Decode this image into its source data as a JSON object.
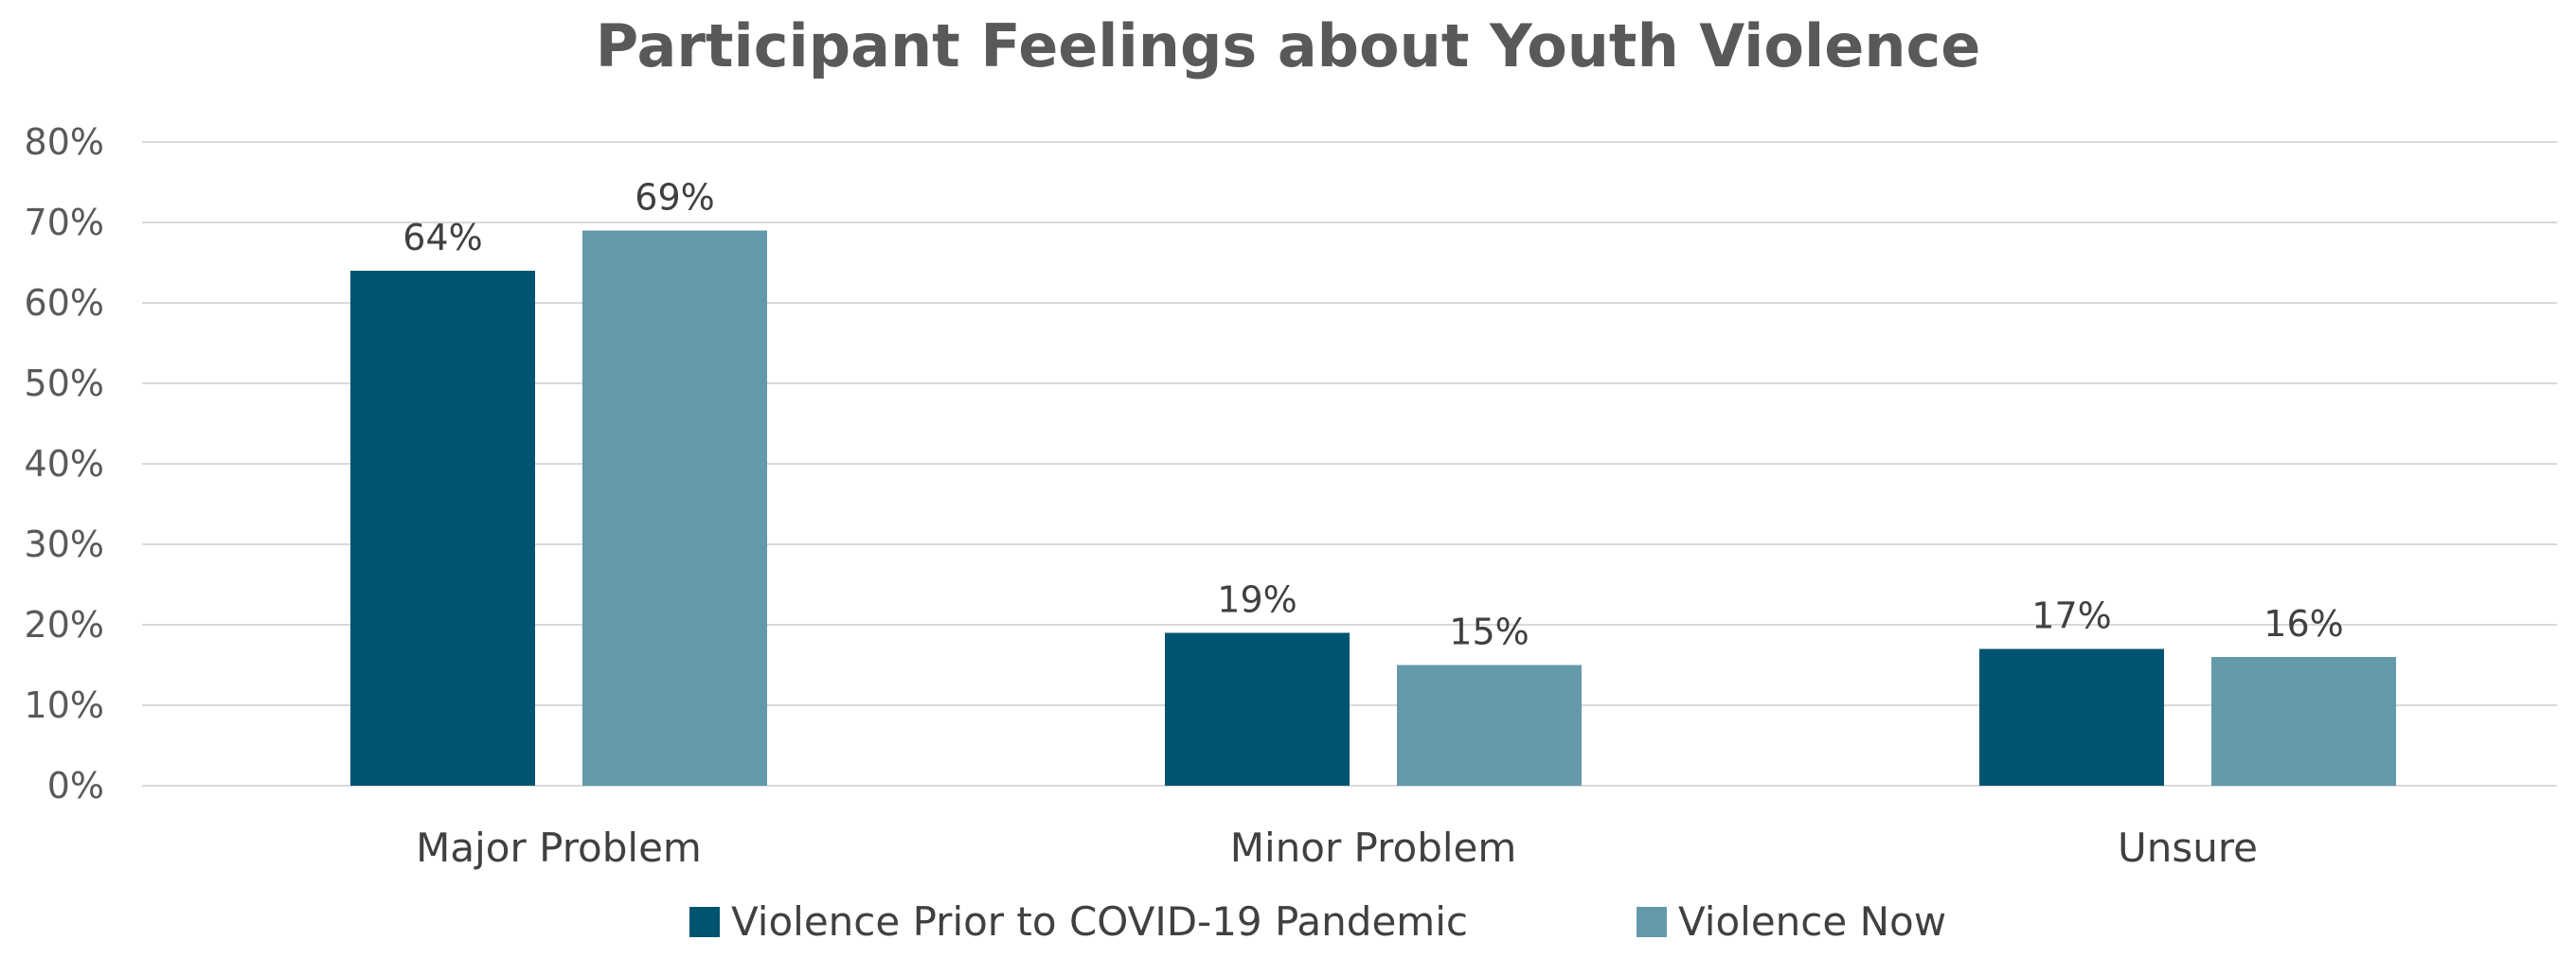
{
  "chart_data": {
    "type": "bar",
    "title": "Participant Feelings about Youth Violence",
    "xlabel": "",
    "ylabel": "",
    "categories": [
      "Major Problem",
      "Minor Problem",
      "Unsure"
    ],
    "series": [
      {
        "name": "Violence Prior to COVID-19 Pandemic",
        "color": "#00546f",
        "values": [
          64,
          19,
          17
        ],
        "labels": [
          "64%",
          "19%",
          "17%"
        ]
      },
      {
        "name": "Violence Now",
        "color": "#6498ab",
        "values": [
          69,
          15,
          16
        ],
        "labels": [
          "69%",
          "15%",
          "16%"
        ]
      }
    ],
    "ylim": [
      0,
      80
    ],
    "yticks": [
      0,
      10,
      20,
      30,
      40,
      50,
      60,
      70,
      80
    ],
    "ytick_labels": [
      "0%",
      "10%",
      "20%",
      "30%",
      "40%",
      "50%",
      "60%",
      "70%",
      "80%"
    ],
    "grid": true,
    "legend_position": "bottom"
  }
}
